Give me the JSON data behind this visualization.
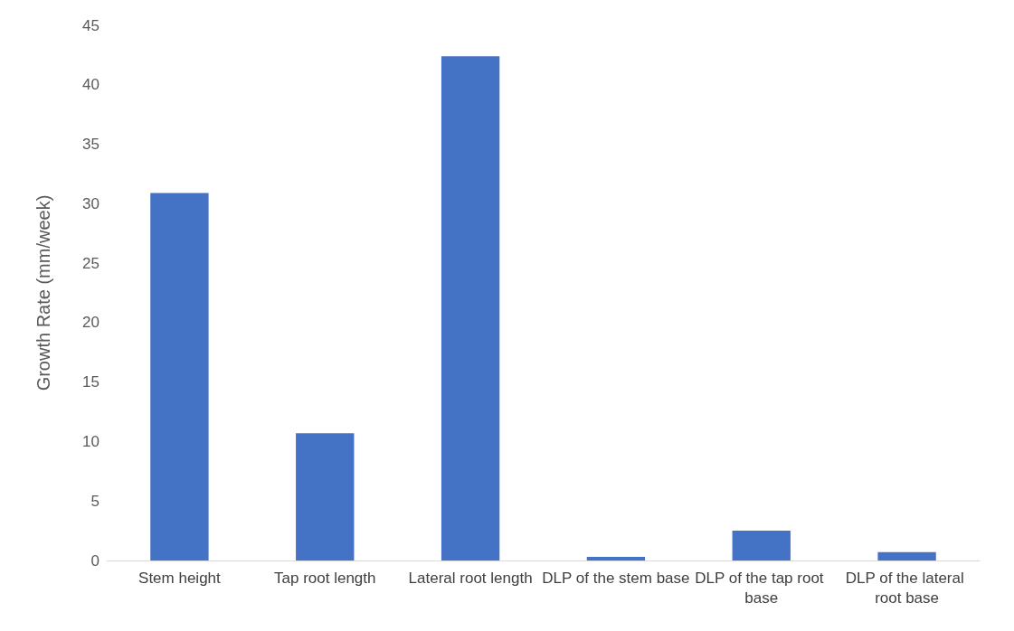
{
  "chart_data": {
    "type": "bar",
    "ylabel": "Growth Rate (mm/week)",
    "categories": [
      "Stem height",
      "Tap root length",
      "Lateral root length",
      "DLP of the stem base",
      "DLP of the tap root base",
      "DLP of the lateral root base"
    ],
    "values": [
      30.9,
      10.7,
      42.4,
      0.3,
      2.5,
      0.7
    ],
    "color": "#4472c4",
    "ylim": [
      0,
      45
    ],
    "yticks": [
      0,
      5,
      10,
      15,
      20,
      25,
      30,
      35,
      40,
      45
    ]
  }
}
